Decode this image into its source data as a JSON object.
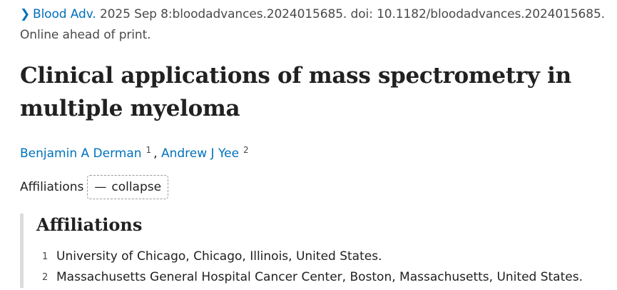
{
  "citation": {
    "chevron_icon": "chevron-right-icon",
    "journal": "Blood Adv.",
    "details": " 2025 Sep 8:bloodadvances.2024015685. doi: 10.1182/bloodadvances.2024015685.",
    "status": "Online ahead of print."
  },
  "article": {
    "title_line1": "Clinical applications of mass spectrometry in",
    "title_line2": "multiple myeloma"
  },
  "authors": [
    {
      "name": "Benjamin A Derman",
      "sup": "1"
    },
    {
      "name": "Andrew J Yee",
      "sup": "2"
    }
  ],
  "authors_separator": ",",
  "affiliations_toggle": {
    "label": "Affiliations",
    "button_symbol": "—",
    "button_label": "collapse"
  },
  "affiliations": {
    "heading": "Affiliations",
    "items": [
      {
        "num": "1",
        "text": "University of Chicago, Chicago, Illinois, United States."
      },
      {
        "num": "2",
        "text": "Massachusetts General Hospital Cancer Center, Boston, Massachusetts, United States."
      }
    ]
  }
}
